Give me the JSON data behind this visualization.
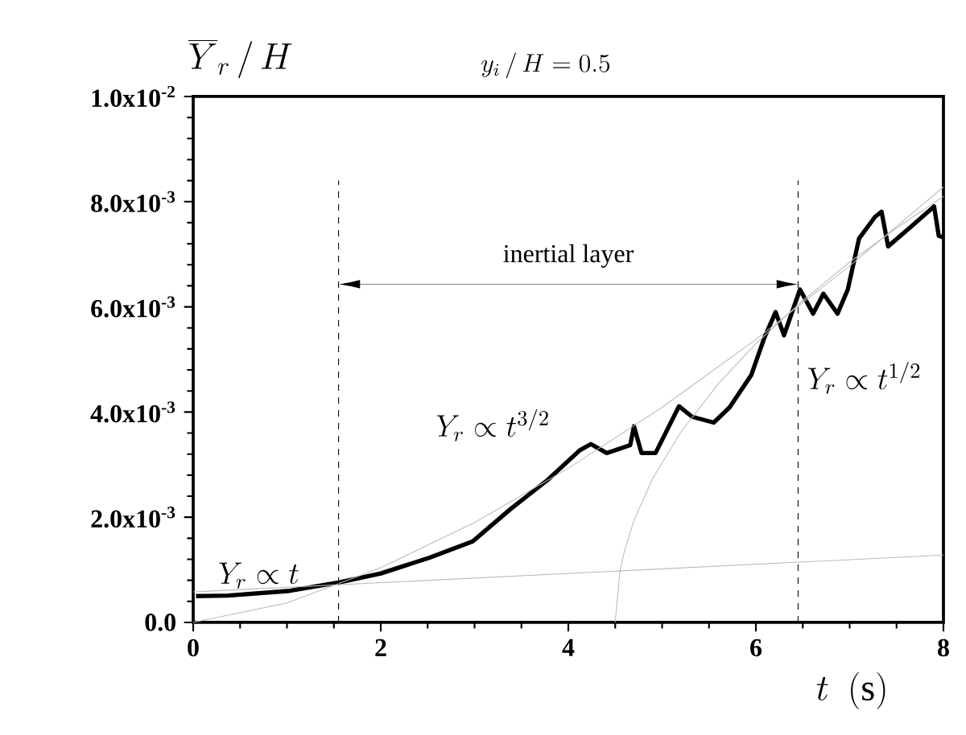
{
  "chart_data": {
    "type": "line",
    "title": "y_i\\,/\\,H = 0.5",
    "ylabel": "\\overline{Y}_r\\,/\\,H",
    "xlabel": "t\\ \\ (\\mathrm{s})",
    "xlim": [
      0,
      8
    ],
    "xticks": [
      0,
      2,
      4,
      6,
      8
    ],
    "ylim": [
      0,
      0.01
    ],
    "yticks": [
      {
        "value": 0,
        "label": "0.0"
      },
      {
        "value": 0.002,
        "label": "2.0x10$^{-3}$"
      },
      {
        "value": 0.004,
        "label": "4.0x10$^{-3}$"
      },
      {
        "value": 0.006,
        "label": "6.0x10$^{-3}$"
      },
      {
        "value": 0.008,
        "label": "8.0x10$^{-3}$"
      },
      {
        "value": 0.01,
        "label": "1.0x10$^{-2}$"
      }
    ],
    "grid": false,
    "marker": "none",
    "series": [
      {
        "color": "#000000",
        "line_style": "solid",
        "x": [
          0.03,
          0.37,
          1.03,
          1.55,
          2.0,
          2.52,
          2.98,
          3.38,
          3.78,
          4.12,
          4.24,
          4.41,
          4.66,
          4.7,
          4.78,
          4.93,
          5.18,
          5.32,
          5.55,
          5.72,
          5.95,
          6.09,
          6.21,
          6.3,
          6.47,
          6.61,
          6.72,
          6.87,
          6.98,
          7.1,
          7.27,
          7.34,
          7.41,
          7.67,
          7.9,
          7.95,
          8.0
        ],
        "values": [
          0.0005,
          0.00051,
          0.0006,
          0.00076,
          0.00093,
          0.00123,
          0.00154,
          0.00215,
          0.00271,
          0.00327,
          0.00339,
          0.00322,
          0.00337,
          0.00373,
          0.00322,
          0.00322,
          0.00411,
          0.00391,
          0.0038,
          0.00409,
          0.0047,
          0.00541,
          0.0059,
          0.00546,
          0.00633,
          0.00587,
          0.00625,
          0.00587,
          0.00633,
          0.0073,
          0.00771,
          0.00781,
          0.00715,
          0.00755,
          0.00791,
          0.00735,
          0.00732
        ]
      },
      {
        "color": "#bbbbbb",
        "line_style": "solid",
        "x": [
          0,
          8
        ],
        "values": [
          0.00058,
          0.00128
        ]
      },
      {
        "color": "#bbbbbb",
        "line_style": "solid",
        "x": [
          0,
          1,
          2,
          3,
          4,
          5,
          6,
          7,
          8
        ],
        "values": [
          0,
          0.00037,
          0.00104,
          0.0019,
          0.00293,
          0.00409,
          0.00538,
          0.00678,
          0.00828
        ]
      },
      {
        "color": "#bbbbbb",
        "line_style": "solid",
        "x": [
          4.5,
          4.55,
          4.6,
          4.7,
          4.9,
          5.2,
          5.6,
          6.0,
          6.5,
          7.0,
          7.5,
          8.0
        ],
        "values": [
          0,
          0.00097,
          0.00137,
          0.00194,
          0.00274,
          0.00362,
          0.00454,
          0.0053,
          0.00612,
          0.00685,
          0.0075,
          0.0081
        ]
      }
    ],
    "ref_lines": [
      {
        "axis": "x",
        "value": 1.55,
        "color": "#000000",
        "line_style": "dashed"
      },
      {
        "axis": "x",
        "value": 6.45,
        "color": "#000000",
        "line_style": "dashed"
      }
    ],
    "annotations": [
      "Y_r \\propto t",
      "Y_r \\propto t^{3/2}",
      "Y_r \\propto t^{1/2}",
      "inertial layer"
    ]
  }
}
